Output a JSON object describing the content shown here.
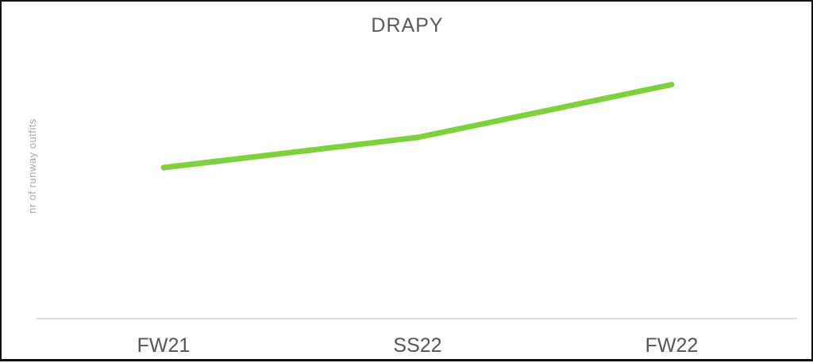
{
  "chart_data": {
    "type": "line",
    "title": "DRAPY",
    "xlabel": "",
    "ylabel": "nr of runway outfits",
    "categories": [
      "FW21",
      "SS22",
      "FW22"
    ],
    "series": [
      {
        "values": [
          20,
          24,
          31
        ]
      }
    ],
    "ylim": [
      0,
      42
    ],
    "grid": false,
    "y_tick_labels_shown": false,
    "legend": "none",
    "colors": {
      "line": "#7ed03c",
      "baseline": "#d4d4d4"
    }
  }
}
